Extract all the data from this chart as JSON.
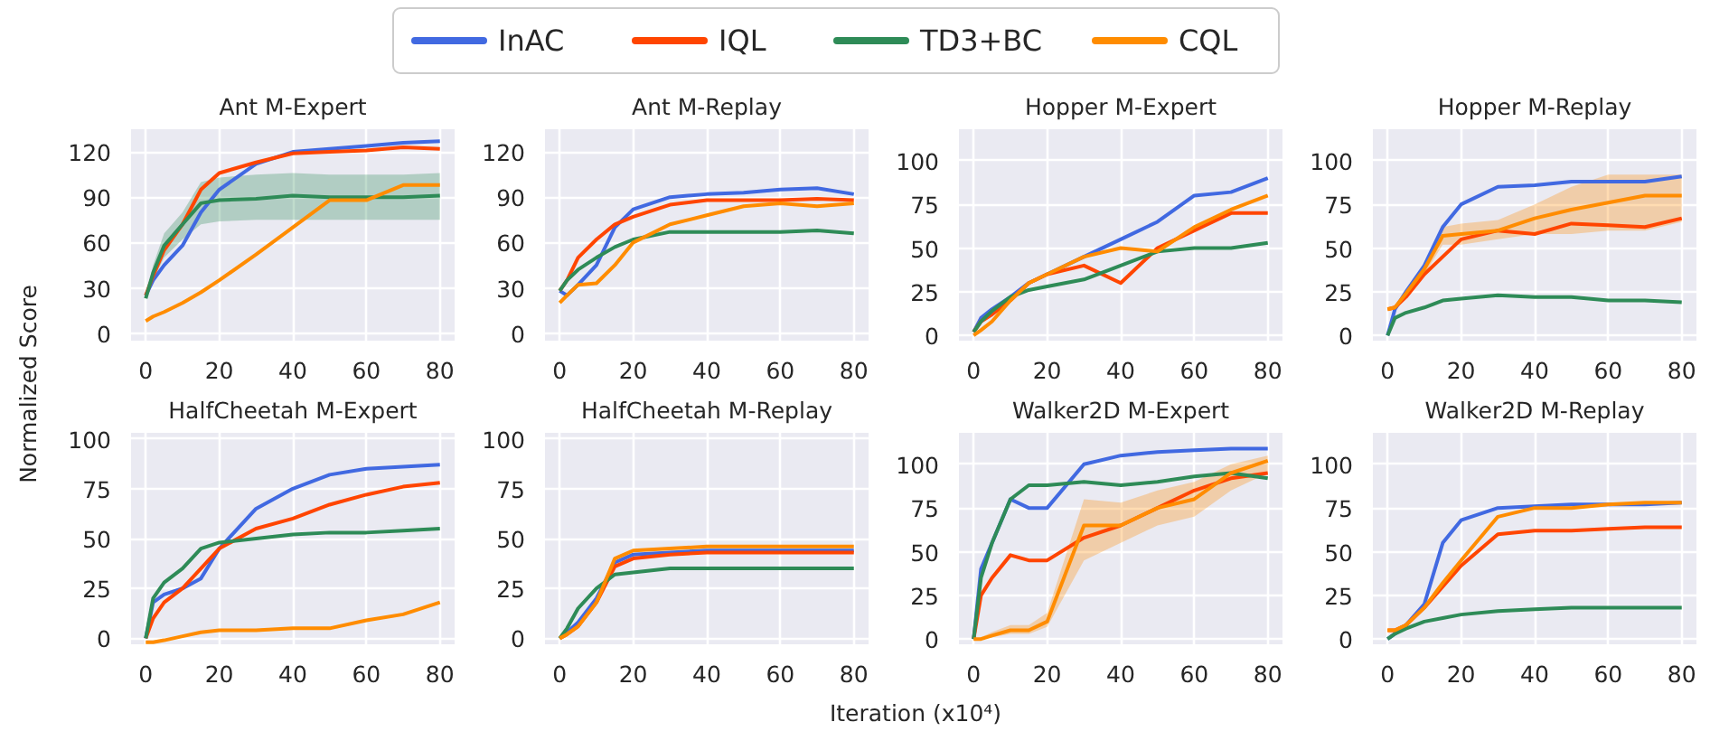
{
  "chart_data": [
    {
      "type": "line",
      "title": "Ant M-Expert",
      "legend": "top",
      "ylabel": "Normalized Score",
      "grid": true,
      "x": [
        0,
        2,
        5,
        10,
        15,
        20,
        30,
        40,
        50,
        60,
        70,
        80
      ],
      "xlim": [
        -4,
        84
      ],
      "xticks": [
        0,
        20,
        40,
        60,
        80
      ],
      "ylim": [
        -5,
        135
      ],
      "yticks": [
        0,
        30,
        60,
        90,
        120
      ],
      "series": [
        {
          "name": "InAC",
          "color": "#4169e1",
          "values": [
            25,
            35,
            45,
            58,
            80,
            95,
            112,
            120,
            122,
            124,
            126,
            127
          ]
        },
        {
          "name": "IQL",
          "color": "#ff4500",
          "values": [
            25,
            38,
            55,
            72,
            95,
            106,
            113,
            119,
            120,
            121,
            123,
            122
          ]
        },
        {
          "name": "TD3+BC",
          "color": "#2e8b57",
          "values": [
            23,
            40,
            58,
            72,
            86,
            88,
            89,
            91,
            90,
            90,
            90,
            91
          ],
          "lower": [
            23,
            35,
            50,
            62,
            72,
            74,
            75,
            75,
            75,
            75,
            75,
            75
          ],
          "upper": [
            23,
            45,
            66,
            80,
            100,
            103,
            105,
            106,
            105,
            105,
            105,
            106
          ]
        },
        {
          "name": "CQL",
          "color": "#ff8c00",
          "values": [
            8,
            11,
            14,
            20,
            27,
            35,
            52,
            70,
            88,
            88,
            98,
            98
          ]
        }
      ]
    },
    {
      "type": "line",
      "title": "Ant M-Replay",
      "grid": true,
      "x": [
        0,
        2,
        5,
        10,
        15,
        20,
        30,
        40,
        50,
        60,
        70,
        80
      ],
      "xlim": [
        -4,
        84
      ],
      "xticks": [
        0,
        20,
        40,
        60,
        80
      ],
      "ylim": [
        -5,
        135
      ],
      "yticks": [
        0,
        30,
        60,
        90,
        120
      ],
      "series": [
        {
          "color": "#4169e1",
          "values": [
            28,
            25,
            32,
            45,
            70,
            82,
            90,
            92,
            93,
            95,
            96,
            92
          ]
        },
        {
          "color": "#ff4500",
          "values": [
            28,
            35,
            50,
            62,
            72,
            77,
            85,
            88,
            88,
            88,
            89,
            88
          ]
        },
        {
          "color": "#2e8b57",
          "values": [
            28,
            35,
            42,
            50,
            57,
            62,
            67,
            67,
            67,
            67,
            68,
            66
          ]
        },
        {
          "color": "#ff8c00",
          "values": [
            20,
            25,
            32,
            33,
            45,
            60,
            72,
            78,
            84,
            86,
            84,
            86
          ]
        }
      ]
    },
    {
      "type": "line",
      "title": "Hopper M-Expert",
      "grid": true,
      "x": [
        0,
        2,
        5,
        10,
        15,
        20,
        30,
        40,
        50,
        60,
        70,
        80
      ],
      "xlim": [
        -4,
        84
      ],
      "xticks": [
        0,
        20,
        40,
        60,
        80
      ],
      "ylim": [
        -3,
        118
      ],
      "yticks": [
        0,
        25,
        50,
        75,
        100
      ],
      "series": [
        {
          "color": "#4169e1",
          "values": [
            2,
            10,
            15,
            22,
            30,
            35,
            45,
            55,
            65,
            80,
            82,
            90
          ]
        },
        {
          "color": "#ff4500",
          "values": [
            2,
            8,
            12,
            20,
            30,
            35,
            40,
            30,
            50,
            60,
            70,
            70
          ]
        },
        {
          "color": "#2e8b57",
          "values": [
            2,
            8,
            14,
            22,
            26,
            28,
            32,
            40,
            48,
            50,
            50,
            53
          ]
        },
        {
          "color": "#ff8c00",
          "values": [
            0,
            3,
            8,
            20,
            30,
            35,
            45,
            50,
            48,
            62,
            72,
            80
          ]
        }
      ]
    },
    {
      "type": "line",
      "title": "Hopper M-Replay",
      "grid": true,
      "x": [
        0,
        2,
        5,
        10,
        15,
        20,
        30,
        40,
        50,
        60,
        70,
        80
      ],
      "xlim": [
        -4,
        84
      ],
      "xticks": [
        0,
        20,
        40,
        60,
        80
      ],
      "ylim": [
        -3,
        118
      ],
      "yticks": [
        0,
        25,
        50,
        75,
        100
      ],
      "series": [
        {
          "color": "#4169e1",
          "values": [
            0,
            15,
            25,
            40,
            62,
            75,
            85,
            86,
            88,
            88,
            88,
            91
          ]
        },
        {
          "color": "#ff4500",
          "values": [
            15,
            16,
            22,
            35,
            45,
            55,
            60,
            58,
            64,
            63,
            62,
            67
          ]
        },
        {
          "color": "#2e8b57",
          "values": [
            0,
            10,
            13,
            16,
            20,
            21,
            23,
            22,
            22,
            20,
            20,
            19
          ]
        },
        {
          "color": "#ff8c00",
          "values": [
            15,
            16,
            24,
            38,
            57,
            58,
            60,
            67,
            72,
            76,
            80,
            80
          ],
          "lower": [
            15,
            16,
            22,
            35,
            52,
            52,
            55,
            58,
            58,
            60,
            60,
            65
          ],
          "upper": [
            15,
            16,
            26,
            41,
            62,
            64,
            66,
            75,
            85,
            92,
            92,
            92
          ]
        }
      ]
    },
    {
      "type": "line",
      "title": "HalfCheetah M-Expert",
      "grid": true,
      "x": [
        0,
        2,
        5,
        10,
        15,
        20,
        30,
        40,
        50,
        60,
        70,
        80
      ],
      "xlim": [
        -4,
        84
      ],
      "xticks": [
        0,
        20,
        40,
        60,
        80
      ],
      "ylim": [
        -3,
        103
      ],
      "yticks": [
        0,
        25,
        50,
        75,
        100
      ],
      "series": [
        {
          "color": "#4169e1",
          "values": [
            0,
            18,
            22,
            25,
            30,
            45,
            65,
            75,
            82,
            85,
            86,
            87
          ]
        },
        {
          "color": "#ff4500",
          "values": [
            0,
            10,
            18,
            25,
            35,
            45,
            55,
            60,
            67,
            72,
            76,
            78
          ]
        },
        {
          "color": "#2e8b57",
          "values": [
            0,
            20,
            28,
            35,
            45,
            48,
            50,
            52,
            53,
            53,
            54,
            55
          ]
        },
        {
          "color": "#ff8c00",
          "values": [
            -2,
            -2,
            -1,
            1,
            3,
            4,
            4,
            5,
            5,
            9,
            12,
            18
          ]
        }
      ]
    },
    {
      "type": "line",
      "title": "HalfCheetah M-Replay",
      "xlabel": "Iteration (x10⁴)",
      "grid": true,
      "x": [
        0,
        2,
        5,
        10,
        15,
        20,
        30,
        40,
        50,
        60,
        70,
        80
      ],
      "xlim": [
        -4,
        84
      ],
      "xticks": [
        0,
        20,
        40,
        60,
        80
      ],
      "ylim": [
        -3,
        103
      ],
      "yticks": [
        0,
        25,
        50,
        75,
        100
      ],
      "series": [
        {
          "color": "#4169e1",
          "values": [
            0,
            3,
            8,
            20,
            38,
            42,
            43,
            44,
            44,
            44,
            44,
            44
          ]
        },
        {
          "color": "#ff4500",
          "values": [
            0,
            2,
            6,
            18,
            36,
            40,
            42,
            43,
            43,
            43,
            43,
            43
          ]
        },
        {
          "color": "#2e8b57",
          "values": [
            0,
            5,
            15,
            25,
            32,
            33,
            35,
            35,
            35,
            35,
            35,
            35
          ]
        },
        {
          "color": "#ff8c00",
          "values": [
            0,
            2,
            6,
            18,
            40,
            44,
            45,
            46,
            46,
            46,
            46,
            46
          ]
        }
      ]
    },
    {
      "type": "line",
      "title": "Walker2D M-Expert",
      "grid": true,
      "x": [
        0,
        2,
        5,
        10,
        15,
        20,
        30,
        40,
        50,
        60,
        70,
        80
      ],
      "xlim": [
        -4,
        84
      ],
      "xticks": [
        0,
        20,
        40,
        60,
        80
      ],
      "ylim": [
        -3,
        118
      ],
      "yticks": [
        0,
        25,
        50,
        75,
        100
      ],
      "series": [
        {
          "color": "#4169e1",
          "values": [
            0,
            40,
            55,
            80,
            75,
            75,
            100,
            105,
            107,
            108,
            109,
            109
          ]
        },
        {
          "color": "#ff4500",
          "values": [
            0,
            25,
            35,
            48,
            45,
            45,
            58,
            65,
            75,
            85,
            92,
            95
          ]
        },
        {
          "color": "#2e8b57",
          "values": [
            0,
            35,
            55,
            80,
            88,
            88,
            90,
            88,
            90,
            93,
            95,
            92
          ]
        },
        {
          "color": "#ff8c00",
          "values": [
            0,
            0,
            2,
            5,
            5,
            10,
            65,
            65,
            75,
            80,
            95,
            102
          ],
          "lower": [
            0,
            0,
            1,
            3,
            3,
            7,
            45,
            55,
            65,
            70,
            85,
            95
          ],
          "upper": [
            0,
            1,
            4,
            8,
            8,
            15,
            80,
            78,
            85,
            90,
            100,
            105
          ]
        }
      ]
    },
    {
      "type": "line",
      "title": "Walker2D M-Replay",
      "grid": true,
      "x": [
        0,
        2,
        5,
        10,
        15,
        20,
        30,
        40,
        50,
        60,
        70,
        80
      ],
      "xlim": [
        -4,
        84
      ],
      "xticks": [
        0,
        20,
        40,
        60,
        80
      ],
      "ylim": [
        -3,
        118
      ],
      "yticks": [
        0,
        25,
        50,
        75,
        100
      ],
      "series": [
        {
          "color": "#4169e1",
          "values": [
            0,
            3,
            8,
            20,
            55,
            68,
            75,
            76,
            77,
            77,
            77,
            78
          ]
        },
        {
          "color": "#ff4500",
          "values": [
            5,
            5,
            8,
            18,
            30,
            42,
            60,
            62,
            62,
            63,
            64,
            64
          ]
        },
        {
          "color": "#2e8b57",
          "values": [
            0,
            3,
            6,
            10,
            12,
            14,
            16,
            17,
            18,
            18,
            18,
            18
          ]
        },
        {
          "color": "#ff8c00",
          "values": [
            5,
            5,
            8,
            18,
            32,
            45,
            70,
            75,
            75,
            77,
            78,
            78
          ]
        }
      ]
    }
  ]
}
